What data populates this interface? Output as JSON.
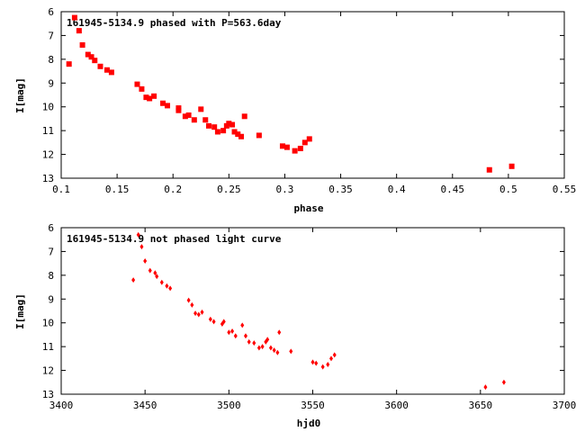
{
  "chart_data": [
    {
      "type": "scatter",
      "title": "161945-5134.9 phased with P=563.6day",
      "xlabel": "phase",
      "ylabel": "I[mag]",
      "xlim": [
        0.1,
        0.55
      ],
      "ylim": [
        6,
        13
      ],
      "y_inverted": true,
      "grid": false,
      "marker_color": "#ff0000",
      "x_ticks": [
        "0.1",
        "0.15",
        "0.2",
        "0.25",
        "0.3",
        "0.35",
        "0.4",
        "0.45",
        "0.5",
        "0.55"
      ],
      "y_ticks": [
        "6",
        "7",
        "8",
        "9",
        "10",
        "11",
        "12",
        "13"
      ],
      "points": [
        {
          "x": 0.107,
          "y": 8.2
        },
        {
          "x": 0.112,
          "y": 6.25
        },
        {
          "x": 0.116,
          "y": 6.8
        },
        {
          "x": 0.119,
          "y": 7.4
        },
        {
          "x": 0.124,
          "y": 7.8
        },
        {
          "x": 0.127,
          "y": 7.9
        },
        {
          "x": 0.13,
          "y": 8.05
        },
        {
          "x": 0.135,
          "y": 8.3
        },
        {
          "x": 0.141,
          "y": 8.45
        },
        {
          "x": 0.145,
          "y": 8.55
        },
        {
          "x": 0.168,
          "y": 9.05
        },
        {
          "x": 0.172,
          "y": 9.25
        },
        {
          "x": 0.176,
          "y": 9.6
        },
        {
          "x": 0.179,
          "y": 9.65
        },
        {
          "x": 0.183,
          "y": 9.55
        },
        {
          "x": 0.191,
          "y": 9.85
        },
        {
          "x": 0.195,
          "y": 9.95
        },
        {
          "x": 0.205,
          "y": 10.05
        },
        {
          "x": 0.205,
          "y": 10.15
        },
        {
          "x": 0.211,
          "y": 10.4
        },
        {
          "x": 0.214,
          "y": 10.35
        },
        {
          "x": 0.219,
          "y": 10.55
        },
        {
          "x": 0.225,
          "y": 10.1
        },
        {
          "x": 0.229,
          "y": 10.55
        },
        {
          "x": 0.232,
          "y": 10.8
        },
        {
          "x": 0.237,
          "y": 10.85
        },
        {
          "x": 0.24,
          "y": 11.05
        },
        {
          "x": 0.245,
          "y": 11.0
        },
        {
          "x": 0.248,
          "y": 10.8
        },
        {
          "x": 0.25,
          "y": 10.7
        },
        {
          "x": 0.253,
          "y": 10.75
        },
        {
          "x": 0.255,
          "y": 11.05
        },
        {
          "x": 0.258,
          "y": 11.15
        },
        {
          "x": 0.261,
          "y": 11.25
        },
        {
          "x": 0.264,
          "y": 10.4
        },
        {
          "x": 0.277,
          "y": 11.2
        },
        {
          "x": 0.298,
          "y": 11.65
        },
        {
          "x": 0.302,
          "y": 11.7
        },
        {
          "x": 0.309,
          "y": 11.85
        },
        {
          "x": 0.314,
          "y": 11.75
        },
        {
          "x": 0.318,
          "y": 11.5
        },
        {
          "x": 0.322,
          "y": 11.35
        },
        {
          "x": 0.483,
          "y": 12.65
        },
        {
          "x": 0.503,
          "y": 12.5
        }
      ]
    },
    {
      "type": "scatter",
      "title": "161945-5134.9 not phased light curve",
      "xlabel": "hjd0",
      "ylabel": "I[mag]",
      "xlim": [
        3400,
        3700
      ],
      "ylim": [
        6,
        13
      ],
      "y_inverted": true,
      "grid": false,
      "marker_color": "#ff0000",
      "x_ticks": [
        "3400",
        "3450",
        "3500",
        "3550",
        "3600",
        "3650",
        "3700"
      ],
      "y_ticks": [
        "6",
        "7",
        "8",
        "9",
        "10",
        "11",
        "12",
        "13"
      ],
      "points": [
        {
          "x": 3443,
          "y": 8.2
        },
        {
          "x": 3446,
          "y": 6.3
        },
        {
          "x": 3448,
          "y": 6.8
        },
        {
          "x": 3450,
          "y": 7.4
        },
        {
          "x": 3453,
          "y": 7.8
        },
        {
          "x": 3456,
          "y": 7.9
        },
        {
          "x": 3457,
          "y": 8.05
        },
        {
          "x": 3460,
          "y": 8.3
        },
        {
          "x": 3463,
          "y": 8.45
        },
        {
          "x": 3465,
          "y": 8.55
        },
        {
          "x": 3476,
          "y": 9.05
        },
        {
          "x": 3478,
          "y": 9.25
        },
        {
          "x": 3480,
          "y": 9.6
        },
        {
          "x": 3482,
          "y": 9.65
        },
        {
          "x": 3484,
          "y": 9.55
        },
        {
          "x": 3489,
          "y": 9.85
        },
        {
          "x": 3491,
          "y": 9.95
        },
        {
          "x": 3496,
          "y": 10.05
        },
        {
          "x": 3497,
          "y": 9.95
        },
        {
          "x": 3500,
          "y": 10.4
        },
        {
          "x": 3502,
          "y": 10.35
        },
        {
          "x": 3504,
          "y": 10.55
        },
        {
          "x": 3508,
          "y": 10.1
        },
        {
          "x": 3510,
          "y": 10.55
        },
        {
          "x": 3512,
          "y": 10.8
        },
        {
          "x": 3515,
          "y": 10.85
        },
        {
          "x": 3518,
          "y": 11.05
        },
        {
          "x": 3520,
          "y": 11.0
        },
        {
          "x": 3522,
          "y": 10.8
        },
        {
          "x": 3523,
          "y": 10.7
        },
        {
          "x": 3525,
          "y": 11.05
        },
        {
          "x": 3527,
          "y": 11.15
        },
        {
          "x": 3529,
          "y": 11.25
        },
        {
          "x": 3530,
          "y": 10.4
        },
        {
          "x": 3537,
          "y": 11.2
        },
        {
          "x": 3550,
          "y": 11.65
        },
        {
          "x": 3552,
          "y": 11.7
        },
        {
          "x": 3556,
          "y": 11.85
        },
        {
          "x": 3559,
          "y": 11.75
        },
        {
          "x": 3561,
          "y": 11.5
        },
        {
          "x": 3563,
          "y": 11.35
        },
        {
          "x": 3653,
          "y": 12.7
        },
        {
          "x": 3664,
          "y": 12.5
        }
      ]
    }
  ]
}
